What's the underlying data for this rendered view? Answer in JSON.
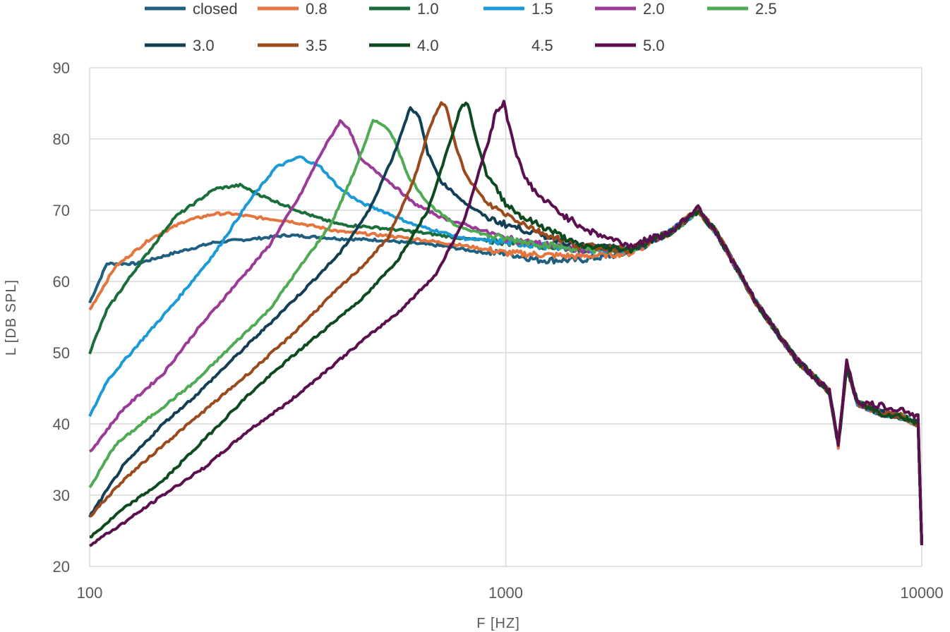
{
  "chart_data": {
    "type": "line",
    "title": "",
    "xlabel": "F [HZ]",
    "ylabel": "L [DB SPL]",
    "x_scale": "log",
    "xlim": [
      100,
      10000
    ],
    "ylim": [
      20,
      90
    ],
    "x_ticks": [
      100,
      1000,
      10000
    ],
    "x_tick_labels": [
      "100",
      "1000",
      "10000"
    ],
    "y_ticks": [
      20,
      30,
      40,
      50,
      60,
      70,
      80,
      90
    ],
    "y_tick_labels": [
      "20",
      "30",
      "40",
      "50",
      "60",
      "70",
      "80",
      "90"
    ],
    "grid": true,
    "legend_position": "top",
    "series": [
      {
        "name": "closed",
        "color": "#1f5f7f",
        "x": [
          100,
          110,
          130,
          160,
          200,
          250,
          300,
          400,
          500,
          700,
          900,
          1000,
          1200,
          1500,
          2000,
          2500,
          2900,
          3200,
          4000,
          5000,
          6000,
          6300,
          6600,
          7000,
          8000,
          9000,
          9800,
          10000
        ],
        "y": [
          57,
          62.5,
          62.5,
          64,
          65.5,
          66,
          66.5,
          66,
          65.8,
          65,
          64,
          64,
          63,
          63,
          64,
          67,
          70,
          67,
          57,
          49,
          44.5,
          37,
          48,
          43,
          41.5,
          41,
          40,
          23
        ]
      },
      {
        "name": "0.8",
        "color": "#e5753f",
        "x": [
          100,
          115,
          140,
          170,
          200,
          220,
          250,
          300,
          400,
          500,
          600,
          800,
          1000,
          1500,
          2000,
          2500,
          2900,
          3200,
          4000,
          5000,
          6000,
          6300,
          6600,
          7000,
          8000,
          9000,
          9800,
          10000
        ],
        "y": [
          56,
          62,
          66,
          68.5,
          69.5,
          69.5,
          69,
          68.5,
          67,
          66.5,
          66,
          65,
          64,
          63.5,
          64,
          67,
          70,
          67,
          57,
          49,
          44.5,
          37,
          48,
          43,
          41.5,
          41,
          40,
          23
        ]
      },
      {
        "name": "1.0",
        "color": "#1a6e3a",
        "x": [
          100,
          110,
          130,
          160,
          200,
          230,
          260,
          300,
          350,
          400,
          500,
          600,
          800,
          1000,
          1500,
          2000,
          2500,
          2900,
          3200,
          4000,
          5000,
          6000,
          6300,
          6600,
          7000,
          8000,
          9000,
          9800,
          10000
        ],
        "y": [
          50,
          56,
          62,
          69,
          73,
          73.5,
          72,
          70.5,
          69,
          68,
          67.5,
          67,
          66,
          65.5,
          64.5,
          64.5,
          67,
          70,
          67,
          57,
          49,
          44.5,
          37,
          48,
          43,
          41.5,
          41,
          40,
          23
        ]
      },
      {
        "name": "1.5",
        "color": "#1a9ad6",
        "x": [
          100,
          110,
          130,
          160,
          200,
          240,
          280,
          320,
          360,
          400,
          450,
          500,
          600,
          800,
          1000,
          1500,
          2000,
          2500,
          2900,
          3200,
          4000,
          5000,
          6000,
          6300,
          6600,
          7000,
          8000,
          9000,
          9800,
          10000
        ],
        "y": [
          41,
          46,
          51,
          57,
          64,
          71,
          76,
          77.5,
          76,
          73,
          71,
          70,
          68,
          66,
          65.5,
          64.5,
          64.5,
          67,
          70,
          67,
          57,
          49,
          44.5,
          37,
          48,
          43,
          41.5,
          41,
          40,
          23
        ]
      },
      {
        "name": "2.0",
        "color": "#9b3a97",
        "x": [
          100,
          120,
          150,
          180,
          220,
          270,
          320,
          360,
          400,
          420,
          450,
          500,
          550,
          600,
          700,
          900,
          1000,
          1500,
          2000,
          2500,
          2900,
          3200,
          4000,
          5000,
          6000,
          6300,
          6600,
          7000,
          8000,
          9000,
          9800,
          10000
        ],
        "y": [
          36,
          42,
          47,
          53,
          59,
          65,
          72,
          78,
          82.5,
          81.5,
          77,
          75,
          73,
          71,
          69,
          67,
          66,
          64.5,
          64.5,
          67,
          70,
          67,
          57,
          49,
          44.5,
          37,
          48,
          43,
          41.5,
          41,
          40,
          23
        ]
      },
      {
        "name": "2.5",
        "color": "#4eaa53",
        "x": [
          100,
          115,
          140,
          180,
          220,
          270,
          320,
          380,
          430,
          480,
          510,
          540,
          580,
          650,
          750,
          900,
          1000,
          1500,
          2000,
          2500,
          2900,
          3200,
          4000,
          5000,
          6000,
          6300,
          6600,
          7000,
          8000,
          9000,
          9800,
          10000
        ],
        "y": [
          31,
          37,
          41,
          46,
          51,
          56,
          62,
          68,
          75,
          82.5,
          82,
          80,
          75,
          71,
          68,
          66.5,
          66,
          64.5,
          64.5,
          67,
          70,
          67,
          57,
          49,
          44.5,
          37,
          48,
          43,
          41.5,
          41,
          40,
          23
        ]
      },
      {
        "name": "3.0",
        "color": "#123f55",
        "x": [
          100,
          120,
          150,
          180,
          220,
          270,
          330,
          400,
          470,
          540,
          590,
          620,
          650,
          700,
          800,
          900,
          1000,
          1500,
          2000,
          2500,
          2900,
          3200,
          4000,
          5000,
          6000,
          6300,
          6600,
          7000,
          8000,
          9000,
          9800,
          10000
        ],
        "y": [
          27,
          34,
          40,
          44,
          49,
          54,
          59,
          64,
          70,
          78,
          84.5,
          83,
          78,
          74,
          71,
          69,
          68,
          65,
          64.5,
          67,
          70,
          67,
          57,
          49,
          44.5,
          37,
          48,
          43,
          41.5,
          41,
          40,
          23
        ]
      },
      {
        "name": "3.5",
        "color": "#9a4a1c",
        "x": [
          100,
          120,
          150,
          190,
          240,
          300,
          380,
          450,
          520,
          600,
          660,
          700,
          720,
          760,
          800,
          900,
          1000,
          1200,
          1500,
          2000,
          2500,
          2900,
          3200,
          4000,
          5000,
          6000,
          6300,
          6600,
          7000,
          8000,
          9000,
          9800,
          10000
        ],
        "y": [
          27,
          32,
          37,
          42,
          47,
          52,
          58,
          62,
          66,
          74,
          82,
          85,
          84.5,
          79,
          75,
          71,
          69.5,
          67,
          65,
          64.5,
          67,
          70,
          67,
          57,
          49,
          44.5,
          37,
          48,
          43,
          41.5,
          41,
          40,
          23
        ]
      },
      {
        "name": "4.0",
        "color": "#0d4a1f",
        "x": [
          100,
          120,
          150,
          190,
          240,
          300,
          380,
          460,
          550,
          650,
          720,
          780,
          810,
          850,
          900,
          1000,
          1100,
          1300,
          1500,
          2000,
          2500,
          2900,
          3200,
          4000,
          5000,
          6000,
          6300,
          6600,
          7000,
          8000,
          9000,
          9800,
          10000
        ],
        "y": [
          24,
          28,
          32,
          38,
          44,
          49,
          54,
          58,
          63,
          70,
          78,
          84.5,
          85,
          80,
          75,
          71,
          69,
          67,
          65,
          64.5,
          67,
          70,
          67,
          57,
          49,
          44.5,
          37,
          48,
          43,
          41.5,
          41,
          40,
          23
        ]
      },
      {
        "name": "4.5",
        "color": "#ffffff",
        "x": [
          100,
          10000
        ],
        "y": [
          null,
          null
        ]
      },
      {
        "name": "5.0",
        "color": "#5a0f4f",
        "x": [
          100,
          120,
          150,
          190,
          240,
          300,
          380,
          460,
          560,
          680,
          800,
          900,
          950,
          990,
          1050,
          1100,
          1200,
          1400,
          1600,
          2000,
          2500,
          2900,
          3200,
          4000,
          5000,
          6000,
          6300,
          6600,
          7000,
          8000,
          9000,
          9800,
          10000
        ],
        "y": [
          23,
          26,
          30,
          34,
          39,
          43,
          48,
          52,
          56,
          61,
          69,
          79,
          84,
          85,
          79,
          75,
          72,
          69,
          67,
          65,
          67,
          70.5,
          67,
          57,
          49,
          44.5,
          37,
          49,
          43,
          42.5,
          42,
          41,
          23
        ]
      }
    ]
  }
}
